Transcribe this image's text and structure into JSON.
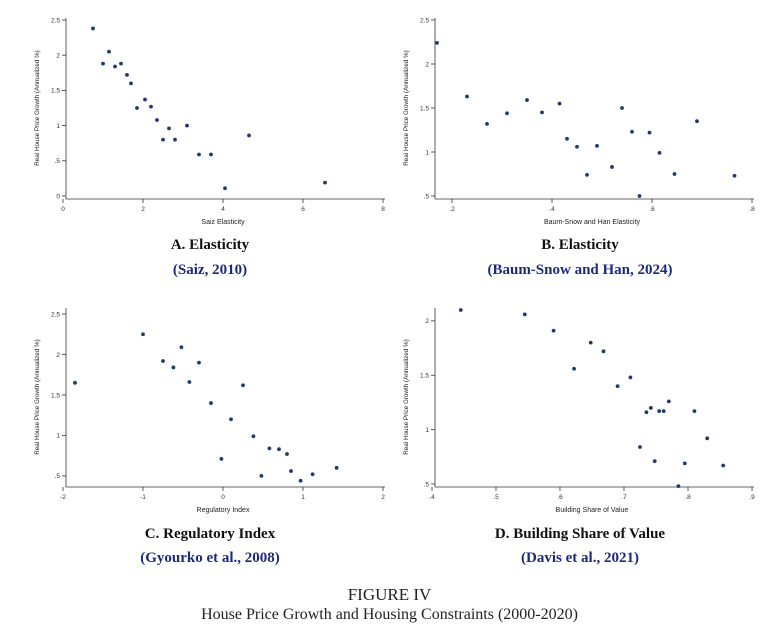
{
  "figure": {
    "label": "FIGURE IV",
    "caption": "House Price Growth and Housing Constraints (2000-2020)"
  },
  "panels": [
    {
      "title": "A. Elasticity",
      "citation": "Saiz, 2010"
    },
    {
      "title": "B. Elasticity",
      "citation": "Baum-Snow and Han, 2024"
    },
    {
      "title": "C. Regulatory Index",
      "citation": "Gyourko et al., 2008"
    },
    {
      "title": "D. Building Share of Value",
      "citation": "Davis et al., 2021"
    }
  ],
  "colors": {
    "marker": "#1f3a6b",
    "citation": "#1c2a7a",
    "axis": "#333333"
  },
  "chart_data": [
    {
      "type": "scatter",
      "xlabel": "Saiz Elasticity",
      "ylabel": "Real House Price Growth (Annualized %)",
      "xlim": [
        0,
        8
      ],
      "ylim": [
        0,
        2.5
      ],
      "xticks": [
        0,
        2,
        4,
        6,
        8
      ],
      "xtick_labels": [
        "0",
        "2",
        "4",
        "6",
        "8"
      ],
      "yticks": [
        0,
        0.5,
        1,
        1.5,
        2,
        2.5
      ],
      "ytick_labels": [
        "0",
        ".5",
        "1",
        "1.5",
        "2",
        "2.5"
      ],
      "points": [
        [
          0.75,
          2.38
        ],
        [
          1.0,
          1.88
        ],
        [
          1.15,
          2.05
        ],
        [
          1.3,
          1.84
        ],
        [
          1.45,
          1.88
        ],
        [
          1.6,
          1.72
        ],
        [
          1.7,
          1.6
        ],
        [
          1.85,
          1.25
        ],
        [
          2.05,
          1.37
        ],
        [
          2.2,
          1.27
        ],
        [
          2.35,
          1.08
        ],
        [
          2.5,
          0.8
        ],
        [
          2.65,
          0.96
        ],
        [
          2.8,
          0.8
        ],
        [
          3.1,
          1.0
        ],
        [
          3.4,
          0.59
        ],
        [
          3.7,
          0.59
        ],
        [
          4.05,
          0.11
        ],
        [
          4.65,
          0.86
        ],
        [
          6.55,
          0.19
        ]
      ]
    },
    {
      "type": "scatter",
      "xlabel": "Baum-Snow and Han Elasticity",
      "ylabel": "Real House Price Growth (Annualized %)",
      "xlim": [
        0.16,
        0.8
      ],
      "ylim": [
        0.5,
        2.5
      ],
      "xticks": [
        0.2,
        0.4,
        0.6,
        0.8
      ],
      "xtick_labels": [
        ".2",
        ".4",
        ".6",
        ".8"
      ],
      "yticks": [
        0.5,
        1,
        1.5,
        2,
        2.5
      ],
      "ytick_labels": [
        ".5",
        "1",
        "1.5",
        "2",
        "2.5"
      ],
      "points": [
        [
          0.17,
          2.24
        ],
        [
          0.23,
          1.63
        ],
        [
          0.27,
          1.32
        ],
        [
          0.31,
          1.44
        ],
        [
          0.35,
          1.59
        ],
        [
          0.38,
          1.45
        ],
        [
          0.415,
          1.55
        ],
        [
          0.43,
          1.15
        ],
        [
          0.45,
          1.06
        ],
        [
          0.47,
          0.74
        ],
        [
          0.49,
          1.07
        ],
        [
          0.52,
          0.83
        ],
        [
          0.54,
          1.5
        ],
        [
          0.56,
          1.23
        ],
        [
          0.575,
          0.5
        ],
        [
          0.595,
          1.22
        ],
        [
          0.615,
          0.99
        ],
        [
          0.645,
          0.75
        ],
        [
          0.69,
          1.35
        ],
        [
          0.765,
          0.73
        ]
      ]
    },
    {
      "type": "scatter",
      "xlabel": "Regulatory Index",
      "ylabel": "Real House Price Growth (Annualized %)",
      "xlim": [
        -2,
        2
      ],
      "ylim": [
        0.4,
        2.55
      ],
      "xticks": [
        -2,
        -1,
        0,
        1,
        2
      ],
      "xtick_labels": [
        "-2",
        "-1",
        "0",
        "1",
        "2"
      ],
      "yticks": [
        0.5,
        1,
        1.5,
        2,
        2.5
      ],
      "ytick_labels": [
        ".5",
        "1",
        "1.5",
        "2",
        "2.5"
      ],
      "points": [
        [
          -1.85,
          1.65
        ],
        [
          -1.0,
          2.25
        ],
        [
          -0.75,
          1.92
        ],
        [
          -0.62,
          1.84
        ],
        [
          -0.52,
          2.09
        ],
        [
          -0.42,
          1.66
        ],
        [
          -0.3,
          1.9
        ],
        [
          -0.15,
          1.4
        ],
        [
          -0.02,
          0.71
        ],
        [
          0.1,
          1.2
        ],
        [
          0.25,
          1.62
        ],
        [
          0.38,
          0.99
        ],
        [
          0.48,
          0.5
        ],
        [
          0.58,
          0.84
        ],
        [
          0.7,
          0.83
        ],
        [
          0.8,
          0.77
        ],
        [
          0.85,
          0.56
        ],
        [
          0.97,
          0.44
        ],
        [
          1.12,
          0.52
        ],
        [
          1.42,
          0.6
        ]
      ]
    },
    {
      "type": "scatter",
      "xlabel": "Building Share of Value",
      "ylabel": "Real House Price Growth (Annualized %)",
      "xlim": [
        0.4,
        0.9
      ],
      "ylim": [
        0.5,
        2.1
      ],
      "xticks": [
        0.4,
        0.5,
        0.6,
        0.7,
        0.8,
        0.9
      ],
      "xtick_labels": [
        ".4",
        ".5",
        ".6",
        ".7",
        ".8",
        ".9"
      ],
      "yticks": [
        0.5,
        1,
        1.5,
        2
      ],
      "ytick_labels": [
        ".5",
        "1",
        "1.5",
        "2"
      ],
      "points": [
        [
          0.445,
          2.1
        ],
        [
          0.545,
          2.06
        ],
        [
          0.59,
          1.91
        ],
        [
          0.622,
          1.56
        ],
        [
          0.648,
          1.8
        ],
        [
          0.668,
          1.72
        ],
        [
          0.69,
          1.4
        ],
        [
          0.71,
          1.48
        ],
        [
          0.725,
          0.84
        ],
        [
          0.735,
          1.16
        ],
        [
          0.742,
          1.2
        ],
        [
          0.748,
          0.71
        ],
        [
          0.755,
          1.17
        ],
        [
          0.762,
          1.17
        ],
        [
          0.77,
          1.26
        ],
        [
          0.785,
          0.48
        ],
        [
          0.795,
          0.69
        ],
        [
          0.81,
          1.17
        ],
        [
          0.83,
          0.92
        ],
        [
          0.855,
          0.67
        ]
      ]
    }
  ]
}
